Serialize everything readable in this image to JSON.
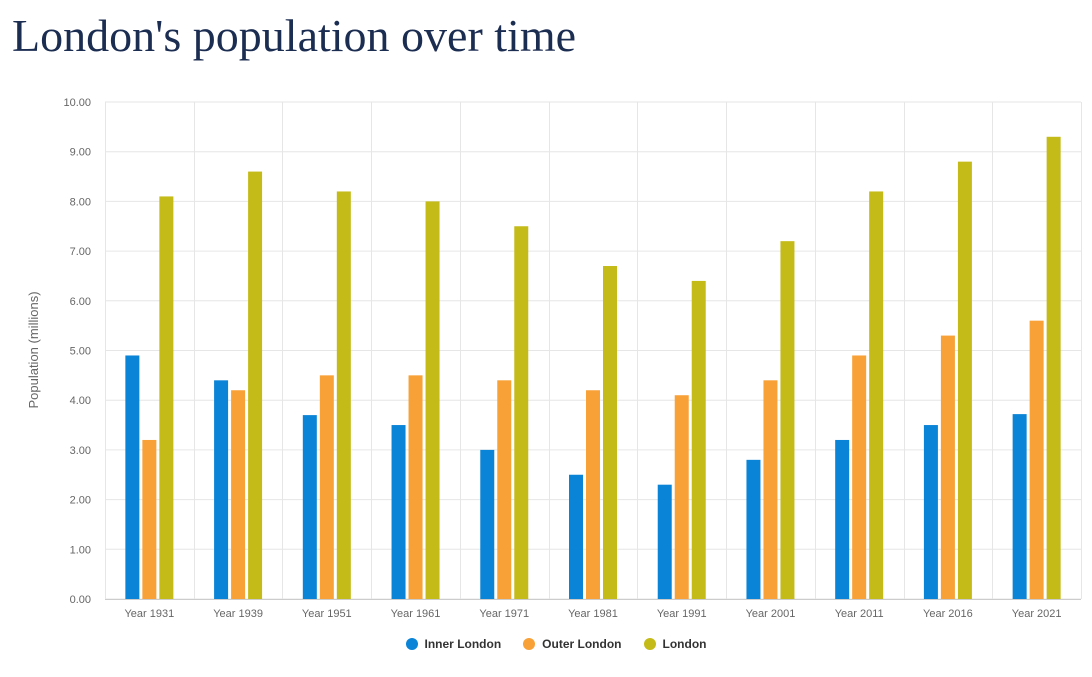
{
  "page": {
    "title": "London's population over time"
  },
  "chart_data": {
    "type": "bar",
    "title": "London's population over time",
    "xlabel": "",
    "ylabel": "Population (millions)",
    "ylim": [
      0,
      10
    ],
    "ytick_step": 1,
    "ytick_labels": [
      "0.00",
      "1.00",
      "2.00",
      "3.00",
      "4.00",
      "5.00",
      "6.00",
      "7.00",
      "8.00",
      "9.00",
      "10.00"
    ],
    "grid": true,
    "legend_position": "bottom-center",
    "categories": [
      "Year 1931",
      "Year 1939",
      "Year 1951",
      "Year 1961",
      "Year 1971",
      "Year 1981",
      "Year 1991",
      "Year 2001",
      "Year 2011",
      "Year 2016",
      "Year 2021"
    ],
    "series": [
      {
        "name": "Inner London",
        "color": "#0a84d6",
        "values": [
          4.9,
          4.4,
          3.7,
          3.5,
          3.0,
          2.5,
          2.3,
          2.8,
          3.2,
          3.5,
          3.72
        ]
      },
      {
        "name": "Outer London",
        "color": "#f8a137",
        "values": [
          3.2,
          4.2,
          4.5,
          4.5,
          4.4,
          4.2,
          4.1,
          4.4,
          4.9,
          5.3,
          5.6
        ]
      },
      {
        "name": "London",
        "color": "#c4bb19",
        "values": [
          8.1,
          8.6,
          8.2,
          8.0,
          7.5,
          6.7,
          6.4,
          7.2,
          8.2,
          8.8,
          9.3
        ]
      }
    ]
  }
}
